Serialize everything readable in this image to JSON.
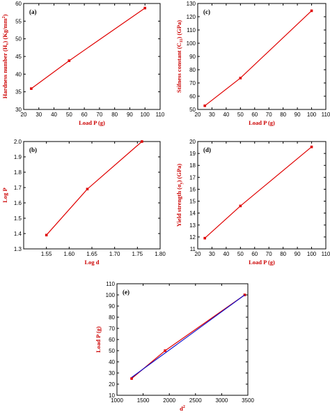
{
  "chart_data": [
    {
      "id": "a",
      "type": "line",
      "panel_label": "(a)",
      "xlabel": "Load P (g)",
      "ylabel": "Hardness number (H",
      "ylabel_sub": "v",
      "ylabel_tail": ") (Kg/mm",
      "ylabel_sup": "2",
      "ylabel_end": ")",
      "xlim": [
        20,
        110
      ],
      "ylim": [
        30,
        60
      ],
      "xticks": [
        20,
        30,
        40,
        50,
        60,
        70,
        80,
        90,
        100,
        110
      ],
      "yticks": [
        30,
        35,
        40,
        45,
        50,
        55,
        60
      ],
      "series": [
        {
          "x": [
            25,
            50,
            100
          ],
          "y": [
            35.9,
            43.8,
            58.7
          ],
          "color": "#e00000"
        }
      ]
    },
    {
      "id": "c",
      "type": "line",
      "panel_label": "(c)",
      "xlabel": "Load P (g)",
      "ylabel": "Stifness constant (C",
      "ylabel_sub": "11",
      "ylabel_tail": ") (GPa)",
      "xlim": [
        20,
        110
      ],
      "ylim": [
        50,
        130
      ],
      "xticks": [
        20,
        30,
        40,
        50,
        60,
        70,
        80,
        90,
        100,
        110
      ],
      "yticks": [
        50,
        60,
        70,
        80,
        90,
        100,
        110,
        120,
        130
      ],
      "series": [
        {
          "x": [
            25,
            50,
            100
          ],
          "y": [
            52.8,
            73.7,
            124.5
          ],
          "color": "#e00000"
        }
      ]
    },
    {
      "id": "b",
      "type": "line",
      "panel_label": "(b)",
      "xlabel": "Log d",
      "ylabel": "Log P",
      "xlim": [
        1.5,
        1.8
      ],
      "ylim": [
        1.3,
        2.0
      ],
      "xticks": [
        "1.55",
        "1.60",
        "1.65",
        "1.70",
        "1.75",
        "1.80"
      ],
      "yticks": [
        "1.3",
        "1.4",
        "1.5",
        "1.6",
        "1.7",
        "1.8",
        "1.9",
        "2.0"
      ],
      "series": [
        {
          "x": [
            1.55,
            1.64,
            1.76
          ],
          "y": [
            1.39,
            1.69,
            2.0
          ],
          "color": "#e00000"
        }
      ]
    },
    {
      "id": "d",
      "type": "line",
      "panel_label": "(d)",
      "xlabel": "Load P (g)",
      "ylabel": "Yield strength (σ",
      "ylabel_sub": "y",
      "ylabel_tail": ") (GPa)",
      "xlim": [
        20,
        110
      ],
      "ylim": [
        11,
        20
      ],
      "xticks": [
        20,
        30,
        40,
        50,
        60,
        70,
        80,
        90,
        100,
        110
      ],
      "yticks": [
        11,
        12,
        13,
        14,
        15,
        16,
        17,
        18,
        19,
        20
      ],
      "series": [
        {
          "x": [
            25,
            50,
            100
          ],
          "y": [
            11.9,
            14.6,
            19.55
          ],
          "color": "#e00000"
        }
      ]
    },
    {
      "id": "e",
      "type": "line",
      "panel_label": "(e)",
      "xlabel": "d",
      "xlabel_sup": "2",
      "ylabel": "Load P (g)",
      "xlim": [
        1000,
        3500
      ],
      "ylim": [
        10,
        110
      ],
      "xticks": [
        1000,
        1500,
        2000,
        2500,
        3000,
        3500
      ],
      "yticks": [
        10,
        20,
        30,
        40,
        50,
        60,
        70,
        80,
        90,
        100,
        110
      ],
      "series": [
        {
          "x": [
            1280,
            1920,
            3440
          ],
          "y": [
            25,
            50,
            100
          ],
          "color": "#e00000"
        },
        {
          "x": [
            1280,
            3440
          ],
          "y": [
            26,
            100
          ],
          "color": "#1010cc",
          "marker": false
        }
      ]
    }
  ]
}
